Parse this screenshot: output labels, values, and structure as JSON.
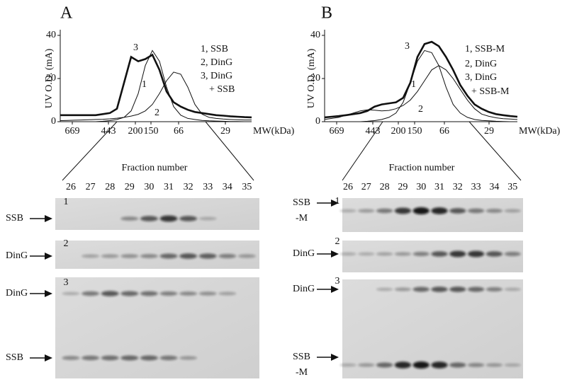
{
  "panels": [
    {
      "label": "A",
      "ylabel": "UV O.D.  (mA)",
      "ylim": [
        0,
        40
      ],
      "yticks": [
        0,
        20,
        40
      ],
      "mw_ticks": [
        669,
        443,
        200,
        150,
        66,
        29
      ],
      "mw_unit": "MW(kDa)",
      "series": [
        {
          "name": "3",
          "values": [
            3,
            3,
            3,
            3,
            3,
            3,
            3.5,
            4,
            6,
            18,
            30,
            28,
            29,
            31,
            24,
            14,
            9,
            7,
            5.5,
            4.5,
            4,
            3.5,
            3,
            2.8,
            2.5,
            2.3,
            2.1,
            2
          ]
        },
        {
          "name": "1",
          "values": [
            0,
            0,
            0,
            0,
            0,
            0,
            0.2,
            0.5,
            1,
            2,
            5,
            13,
            26,
            33,
            28,
            16,
            7,
            3,
            1.5,
            1,
            0.6,
            0.4,
            0.3,
            0.2,
            0.1,
            0.1,
            0,
            0
          ]
        },
        {
          "name": "2",
          "values": [
            0.5,
            0.6,
            0.7,
            0.8,
            0.9,
            1,
            1.1,
            1.3,
            1.6,
            2,
            2.6,
            3.4,
            5,
            8,
            13,
            19,
            23,
            22,
            16,
            8,
            3.5,
            2,
            1.5,
            1.2,
            1,
            0.9,
            0.8,
            0.8
          ]
        }
      ],
      "legend": [
        "1, SSB",
        "2, DinG",
        "3, DinG",
        "+ SSB"
      ],
      "fraction_title": "Fraction number",
      "fractions": [
        26,
        27,
        28,
        29,
        30,
        31,
        32,
        33,
        34,
        35
      ],
      "gels": [
        {
          "number": "1",
          "markers": [
            {
              "lines": [
                "SSB"
              ]
            }
          ]
        },
        {
          "number": "2",
          "markers": [
            {
              "lines": [
                "DinG"
              ]
            }
          ]
        },
        {
          "number": "3",
          "markers": [
            {
              "lines": [
                "DinG"
              ]
            },
            {
              "lines": [
                "SSB"
              ]
            }
          ]
        }
      ]
    },
    {
      "label": "B",
      "ylabel": "UV O.D.  (mA)",
      "ylim": [
        0,
        40
      ],
      "yticks": [
        0,
        20,
        40
      ],
      "mw_ticks": [
        669,
        443,
        200,
        150,
        66,
        29
      ],
      "mw_unit": "MW(kDa)",
      "series": [
        {
          "name": "3",
          "values": [
            2,
            2.3,
            2.6,
            3,
            3.5,
            4,
            5,
            7,
            8,
            8.5,
            9,
            11,
            18,
            30,
            36,
            37,
            35,
            30,
            24,
            17,
            12,
            8,
            6,
            4.5,
            3.5,
            3,
            2.6,
            2.3
          ]
        },
        {
          "name": "1",
          "values": [
            0,
            0,
            0,
            0,
            0,
            0,
            0.2,
            0.5,
            1,
            2,
            4,
            9,
            18,
            28,
            33,
            32,
            26,
            16,
            8,
            4,
            2,
            1,
            0.6,
            0.4,
            0.2,
            0.1,
            0,
            0
          ]
        },
        {
          "name": "2",
          "values": [
            1,
            1.5,
            2,
            3,
            4,
            5,
            5.5,
            5.3,
            5,
            5.2,
            6,
            7.5,
            10,
            14,
            19,
            24,
            26,
            24,
            20,
            15,
            10,
            6,
            3.5,
            2.5,
            1.8,
            1.4,
            1.2,
            1
          ]
        }
      ],
      "legend": [
        "1, SSB-M",
        "2, DinG",
        "3, DinG",
        "+ SSB-M"
      ],
      "fraction_title": "Fraction number",
      "fractions": [
        26,
        27,
        28,
        29,
        30,
        31,
        32,
        33,
        34,
        35
      ],
      "gels": [
        {
          "number": "1",
          "markers": [
            {
              "lines": [
                "SSB",
                "-M"
              ]
            }
          ]
        },
        {
          "number": "2",
          "markers": [
            {
              "lines": [
                "DinG"
              ]
            }
          ]
        },
        {
          "number": "3",
          "markers": [
            {
              "lines": [
                "DinG"
              ]
            },
            {
              "lines": [
                "SSB",
                "-M"
              ]
            }
          ]
        }
      ]
    }
  ]
}
